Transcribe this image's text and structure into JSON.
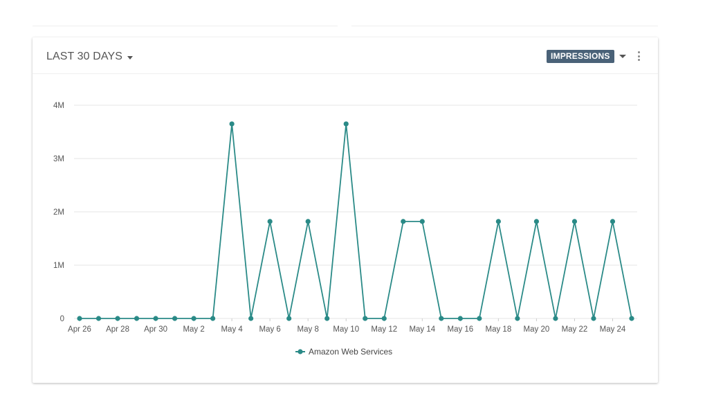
{
  "header": {
    "range_label": "LAST 30 DAYS",
    "metric_label": "IMPRESSIONS"
  },
  "colors": {
    "series": "#2a8a87",
    "grid": "#e6e6e6",
    "badge": "#4a6278"
  },
  "chart_data": {
    "type": "line",
    "x": [
      "Apr 26",
      "Apr 27",
      "Apr 28",
      "Apr 29",
      "Apr 30",
      "May 1",
      "May 2",
      "May 3",
      "May 4",
      "May 5",
      "May 6",
      "May 7",
      "May 8",
      "May 9",
      "May 10",
      "May 11",
      "May 12",
      "May 13",
      "May 14",
      "May 15",
      "May 16",
      "May 17",
      "May 18",
      "May 19",
      "May 20",
      "May 21",
      "May 22",
      "May 23",
      "May 24",
      "May 25"
    ],
    "x_tick_labels": [
      "Apr 26",
      "Apr 28",
      "Apr 30",
      "May 2",
      "May 4",
      "May 6",
      "May 8",
      "May 10",
      "May 12",
      "May 14",
      "May 16",
      "May 18",
      "May 20",
      "May 22",
      "May 24"
    ],
    "series": [
      {
        "name": "Amazon Web Services",
        "values": [
          0,
          0,
          0,
          0,
          0,
          0,
          0,
          0,
          3650000,
          0,
          1820000,
          0,
          1820000,
          0,
          3650000,
          0,
          0,
          1820000,
          1820000,
          0,
          0,
          0,
          1820000,
          0,
          1820000,
          0,
          1820000,
          0,
          1820000,
          0
        ]
      }
    ],
    "ylim": [
      0,
      4000000
    ],
    "y_ticks": [
      0,
      1000000,
      2000000,
      3000000,
      4000000
    ],
    "y_tick_labels": [
      "0",
      "1M",
      "2M",
      "3M",
      "4M"
    ],
    "grid": true,
    "legend": "bottom"
  }
}
